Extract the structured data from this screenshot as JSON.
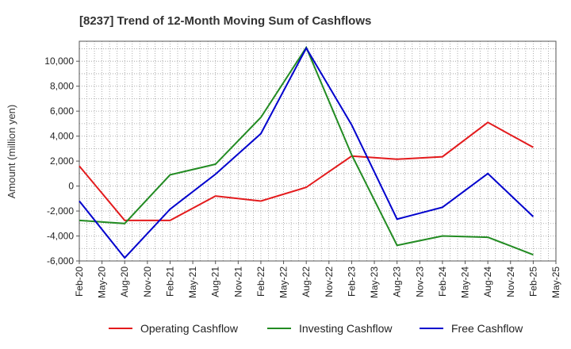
{
  "chart_data": {
    "type": "line",
    "title": "[8237]  Trend of 12-Month Moving Sum of Cashflows",
    "xlabel": "",
    "ylabel": "Amount (million yen)",
    "x_tick_labels": [
      "Feb-20",
      "May-20",
      "Aug-20",
      "Nov-20",
      "Feb-21",
      "May-21",
      "Aug-21",
      "Nov-21",
      "Feb-22",
      "May-22",
      "Aug-22",
      "Nov-22",
      "Feb-23",
      "May-23",
      "Aug-23",
      "Nov-23",
      "Feb-24",
      "May-24",
      "Aug-24",
      "Nov-24",
      "Feb-25",
      "May-25"
    ],
    "y_ticks": [
      -6000,
      -4000,
      -2000,
      0,
      2000,
      4000,
      6000,
      8000,
      10000
    ],
    "y_tick_labels": [
      "-6,000",
      "-4,000",
      "-2,000",
      "0",
      "2,000",
      "4,000",
      "6,000",
      "8,000",
      "10,000"
    ],
    "ylim": [
      -6000,
      11600
    ],
    "grid": true,
    "legend_position": "bottom",
    "series": [
      {
        "name": "Operating Cashflow",
        "color": "#e31a1c",
        "points": [
          {
            "x": "Feb-20",
            "y": 1600
          },
          {
            "x": "Aug-20",
            "y": -2750
          },
          {
            "x": "Feb-21",
            "y": -2750
          },
          {
            "x": "Aug-21",
            "y": -800
          },
          {
            "x": "Feb-22",
            "y": -1200
          },
          {
            "x": "Aug-22",
            "y": -100
          },
          {
            "x": "Feb-23",
            "y": 2400
          },
          {
            "x": "Aug-23",
            "y": 2150
          },
          {
            "x": "Feb-24",
            "y": 2350
          },
          {
            "x": "Aug-24",
            "y": 5100
          },
          {
            "x": "Feb-25",
            "y": 3100
          }
        ]
      },
      {
        "name": "Investing Cashflow",
        "color": "#228b22",
        "points": [
          {
            "x": "Feb-20",
            "y": -2750
          },
          {
            "x": "Aug-20",
            "y": -3000
          },
          {
            "x": "Feb-21",
            "y": 900
          },
          {
            "x": "Aug-21",
            "y": 1750
          },
          {
            "x": "Feb-22",
            "y": 5500
          },
          {
            "x": "Aug-22",
            "y": 11100
          },
          {
            "x": "Feb-23",
            "y": 2500
          },
          {
            "x": "Aug-23",
            "y": -4750
          },
          {
            "x": "Feb-24",
            "y": -4000
          },
          {
            "x": "Aug-24",
            "y": -4100
          },
          {
            "x": "Feb-25",
            "y": -5500
          }
        ]
      },
      {
        "name": "Free Cashflow",
        "color": "#0000cd",
        "points": [
          {
            "x": "Feb-20",
            "y": -1200
          },
          {
            "x": "Aug-20",
            "y": -5750
          },
          {
            "x": "Feb-21",
            "y": -1850
          },
          {
            "x": "Aug-21",
            "y": 950
          },
          {
            "x": "Feb-22",
            "y": 4200
          },
          {
            "x": "Aug-22",
            "y": 11050
          },
          {
            "x": "Feb-23",
            "y": 4900
          },
          {
            "x": "Aug-23",
            "y": -2650
          },
          {
            "x": "Feb-24",
            "y": -1700
          },
          {
            "x": "Aug-24",
            "y": 1000
          },
          {
            "x": "Feb-25",
            "y": -2450
          }
        ]
      }
    ]
  }
}
